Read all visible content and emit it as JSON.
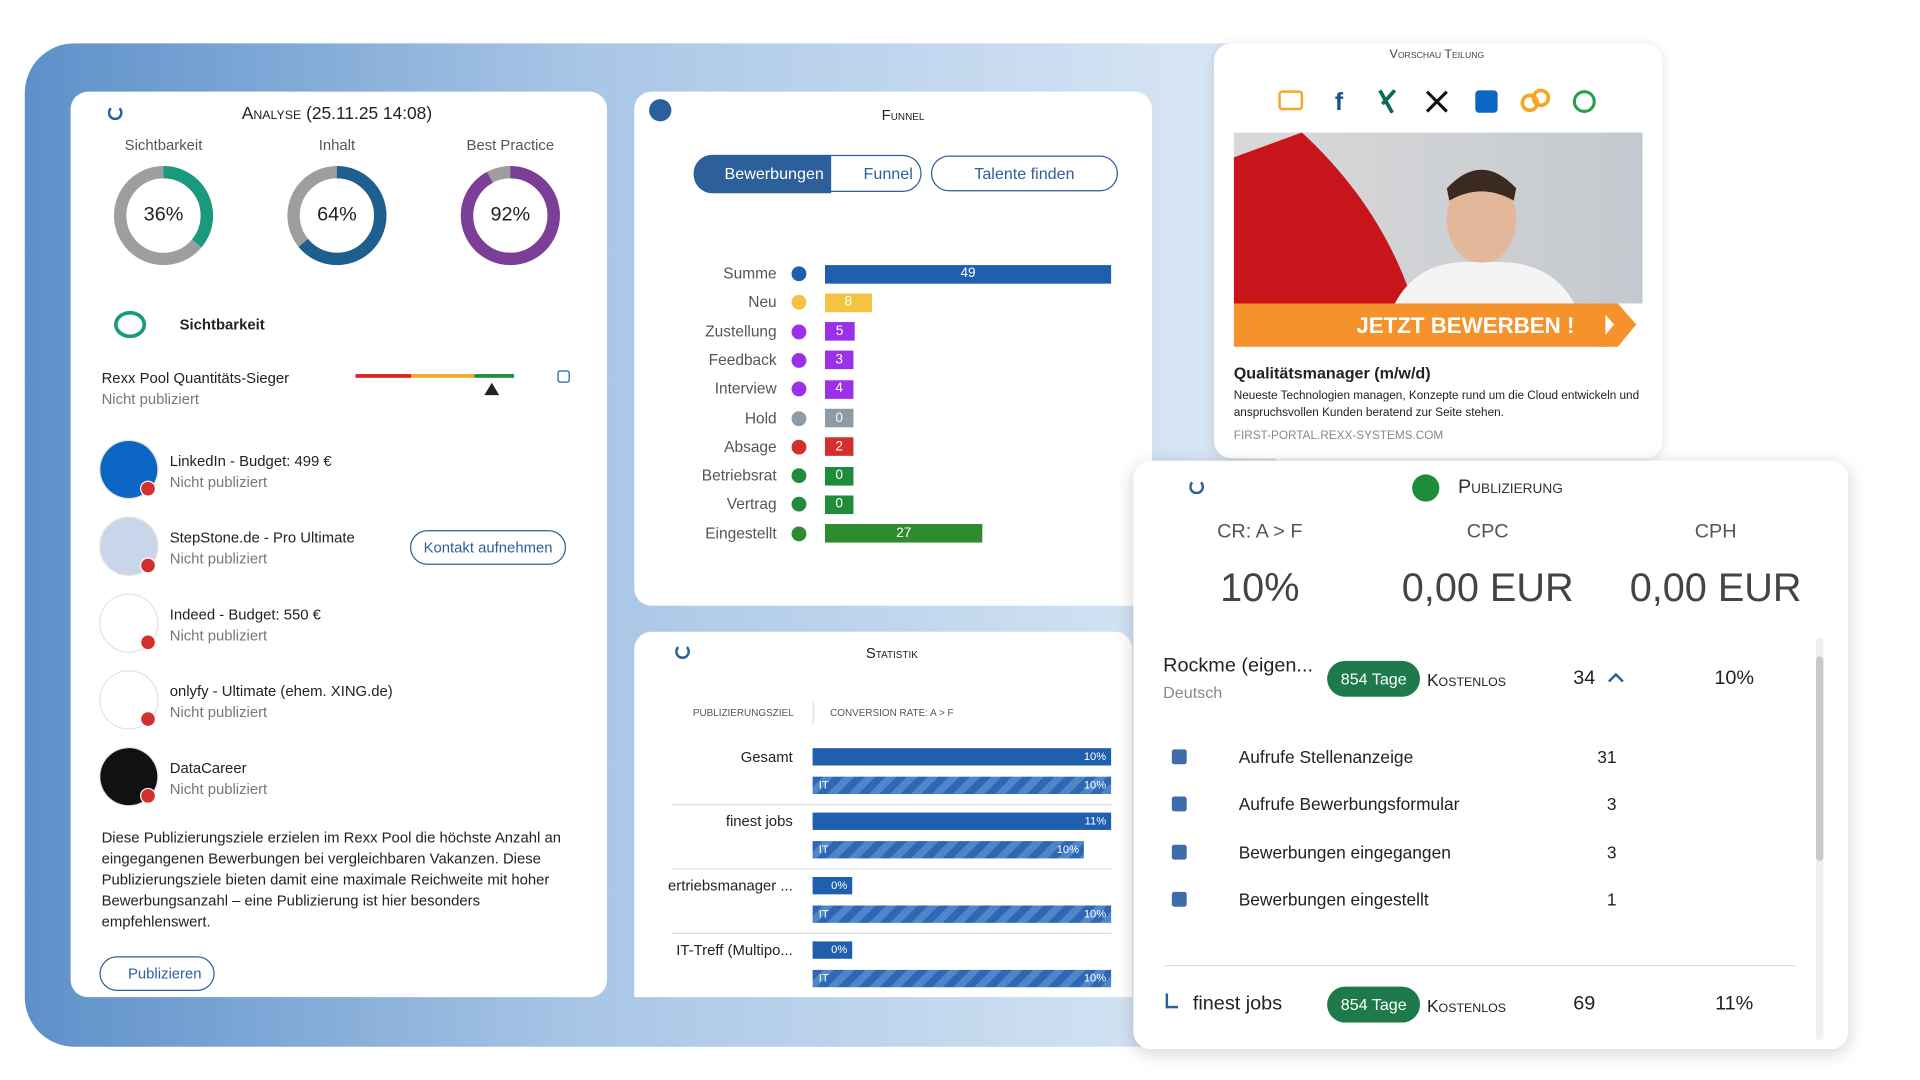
{
  "analysis": {
    "title": "Analyse (25.11.25 14:08)",
    "gauges": [
      {
        "label": "Sichtbarkeit",
        "value": 36,
        "value_label": "36%",
        "color": "#1a9a7c"
      },
      {
        "label": "Inhalt",
        "value": 64,
        "value_label": "64%",
        "color": "#1f5f8f"
      },
      {
        "label": "Best Practice",
        "value": 92,
        "value_label": "92%",
        "color": "#7b3f98"
      }
    ],
    "section": "Sichtbarkeit",
    "quality": {
      "name": "Rexx Pool Quantitäts-Sieger",
      "status": "Nicht publiziert"
    },
    "channels": [
      {
        "name": "LinkedIn - Budget: 499 €",
        "status": "Nicht publiziert",
        "color": "#0a66c2"
      },
      {
        "name": "StepStone.de - Pro Ultimate",
        "status": "Nicht publiziert",
        "color": "#c9d6ea"
      },
      {
        "name": "Indeed - Budget: 550 €",
        "status": "Nicht publiziert",
        "color": "#ffffff"
      },
      {
        "name": "onlyfy - Ultimate (ehem. XING.de)",
        "status": "Nicht publiziert",
        "color": "#ffffff"
      },
      {
        "name": "DataCareer",
        "status": "Nicht publiziert",
        "color": "#111111"
      }
    ],
    "contact_button": "Kontakt aufnehmen",
    "description": "Diese Publizierungsziele erzielen im Rexx Pool die höchste Anzahl an eingegangenen Bewerbungen bei vergleichbaren Vakanzen. Diese Publizierungsziele bieten damit eine maximale Reichweite mit hoher Bewerbungsanzahl – eine Publizierung ist hier besonders empfehlenswert.",
    "publish_button": "Publizieren"
  },
  "funnel": {
    "title": "Funnel",
    "tabs": [
      "Bewerbungen",
      "Funnel",
      "Talente finden"
    ],
    "rows": [
      {
        "name": "Summe",
        "value": 49,
        "color": "#1f5fae"
      },
      {
        "name": "Neu",
        "value": 8,
        "color": "#f5c242"
      },
      {
        "name": "Zustellung",
        "value": 5,
        "color": "#9b30e8"
      },
      {
        "name": "Feedback",
        "value": 3,
        "color": "#9b30e8"
      },
      {
        "name": "Interview",
        "value": 4,
        "color": "#9b30e8"
      },
      {
        "name": "Hold",
        "value": 0,
        "color": "#8c9ba5"
      },
      {
        "name": "Absage",
        "value": 2,
        "color": "#d32f2f"
      },
      {
        "name": "Betriebsrat",
        "value": 0,
        "color": "#1e8c3a"
      },
      {
        "name": "Vertrag",
        "value": 0,
        "color": "#1e8c3a"
      },
      {
        "name": "Eingestellt",
        "value": 27,
        "color": "#2e8b2e"
      }
    ]
  },
  "statistik": {
    "title": "Statistik",
    "headers": [
      "PUBLIZIERUNGSZIEL",
      "CONVERSION RATE: A > F"
    ],
    "rows": [
      {
        "name": "Gesamt",
        "value": 10,
        "value_label": "10%",
        "sub_name": "IT",
        "sub_value": 10,
        "sub_value_label": "10%"
      },
      {
        "name": "finest jobs",
        "value": 11,
        "value_label": "11%",
        "sub_name": "IT",
        "sub_value": 10,
        "sub_value_label": "10%"
      },
      {
        "name": "ertriebsmanager ...",
        "value": 0,
        "value_label": "0%",
        "sub_name": "IT",
        "sub_value": 10,
        "sub_value_label": "10%"
      },
      {
        "name": "IT-Treff (Multipo...",
        "value": 0,
        "value_label": "0%",
        "sub_name": "IT",
        "sub_value": 10,
        "sub_value_label": "10%"
      }
    ]
  },
  "preview": {
    "title": "Vorschau Teilung",
    "banner": "JETZT BEWERBEN !",
    "job_title": "Qualitätsmanager (m/w/d)",
    "description": "Neueste Technologien managen, Konzepte rund um die Cloud entwickeln und anspruchsvollen Kunden beratend zur Seite stehen.",
    "url": "FIRST-PORTAL.REXX-SYSTEMS.COM"
  },
  "publication": {
    "title": "Publizierung",
    "metrics": [
      {
        "label": "CR: A > F",
        "value": "10%"
      },
      {
        "label": "CPC",
        "value": "0,00 EUR"
      },
      {
        "label": "CPH",
        "value": "0,00 EUR"
      }
    ],
    "rows": [
      {
        "name": "Rockme (eigen...",
        "language": "Deutsch",
        "badge": "854 Tage",
        "price": "Kostenlos",
        "count": 34,
        "rate": "10%",
        "details": [
          {
            "label": "Aufrufe Stellenanzeige",
            "value": 31
          },
          {
            "label": "Aufrufe Bewerbungsformular",
            "value": 3
          },
          {
            "label": "Bewerbungen eingegangen",
            "value": 3
          },
          {
            "label": "Bewerbungen eingestellt",
            "value": 1
          }
        ]
      },
      {
        "name": "finest jobs",
        "badge": "854 Tage",
        "price": "Kostenlos",
        "count": 69,
        "rate": "11%"
      }
    ]
  }
}
